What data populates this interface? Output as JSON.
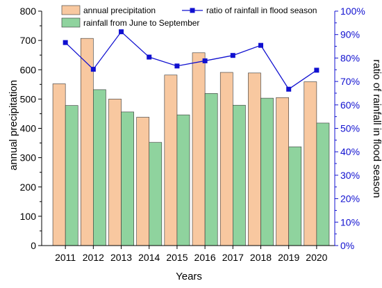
{
  "chart_data": {
    "type": "bar",
    "categories": [
      "2011",
      "2012",
      "2013",
      "2014",
      "2015",
      "2016",
      "2017",
      "2018",
      "2019",
      "2020"
    ],
    "xlabel": "Years",
    "ylabel": "annual precipitation",
    "ylabel_right": "ratio of rainfall in flood season",
    "ylim": [
      0,
      800
    ],
    "yticks": [
      "0",
      "100",
      "200",
      "300",
      "400",
      "500",
      "600",
      "700",
      "800"
    ],
    "ylim_right": [
      0,
      100
    ],
    "yticks_right": [
      "0%",
      "10%",
      "20%",
      "30%",
      "40%",
      "50%",
      "60%",
      "70%",
      "80%",
      "90%",
      "100%"
    ],
    "legend_position": "top",
    "series": [
      {
        "name": "annual precipitation",
        "type": "bar",
        "color": "#f8c8a0",
        "values": [
          552,
          707,
          500,
          438,
          582,
          658,
          591,
          589,
          505,
          559
        ]
      },
      {
        "name": "rainfall from June to September",
        "type": "bar",
        "color": "#8fd39e",
        "values": [
          478,
          532,
          456,
          352,
          446,
          519,
          479,
          503,
          337,
          418
        ]
      },
      {
        "name": "ratio of rainfall in flood season",
        "type": "line",
        "axis": "right",
        "color": "#1010d0",
        "values": [
          86.6,
          75.2,
          91.2,
          80.4,
          76.6,
          78.8,
          81.1,
          85.4,
          66.7,
          74.8
        ]
      }
    ]
  }
}
